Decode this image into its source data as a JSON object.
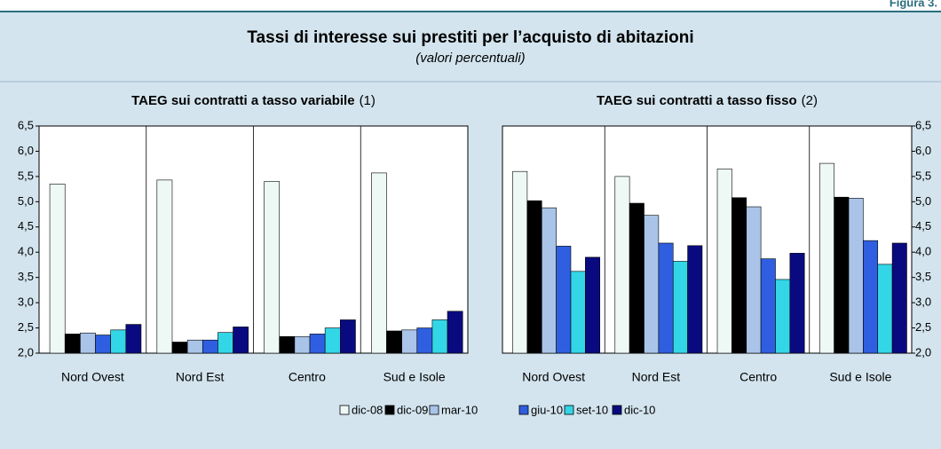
{
  "figure_label": "Figura 3.",
  "title": "Tassi di interesse sui prestiti per l’acquisto di abitazioni",
  "subtitle": "(valori percentuali)",
  "chart_data": [
    {
      "type": "bar",
      "title": "TAEG sui contratti a tasso variabile",
      "title_note": "(1)",
      "categories": [
        "Nord Ovest",
        "Nord Est",
        "Centro",
        "Sud e Isole"
      ],
      "series": [
        {
          "name": "dic-08",
          "color": "#eef9f6",
          "values": [
            5.35,
            5.43,
            5.4,
            5.57
          ]
        },
        {
          "name": "dic-09",
          "color": "#000000",
          "values": [
            2.38,
            2.22,
            2.33,
            2.44
          ]
        },
        {
          "name": "mar-10",
          "color": "#a9c4e8",
          "values": [
            2.4,
            2.26,
            2.33,
            2.46
          ]
        },
        {
          "name": "giu-10",
          "color": "#2f5fe0",
          "values": [
            2.36,
            2.26,
            2.38,
            2.5
          ]
        },
        {
          "name": "set-10",
          "color": "#33d6e6",
          "values": [
            2.46,
            2.41,
            2.5,
            2.66
          ]
        },
        {
          "name": "dic-10",
          "color": "#0a0a80",
          "values": [
            2.57,
            2.52,
            2.66,
            2.83
          ]
        }
      ],
      "ylim": [
        2.0,
        6.5
      ],
      "yticks": [
        {
          "value": 2.0,
          "label": "2,0"
        },
        {
          "value": 2.5,
          "label": "2,5"
        },
        {
          "value": 3.0,
          "label": "3,0"
        },
        {
          "value": 3.5,
          "label": "3,5"
        },
        {
          "value": 4.0,
          "label": "4,0"
        },
        {
          "value": 4.5,
          "label": "4,5"
        },
        {
          "value": 5.0,
          "label": "5,0"
        },
        {
          "value": 5.5,
          "label": "5,5"
        },
        {
          "value": 6.0,
          "label": "6,0"
        },
        {
          "value": 6.5,
          "label": "6,5"
        }
      ],
      "yaxis_side": "left"
    },
    {
      "type": "bar",
      "title": "TAEG sui contratti a tasso fisso",
      "title_note": "(2)",
      "categories": [
        "Nord Ovest",
        "Nord Est",
        "Centro",
        "Sud e Isole"
      ],
      "series": [
        {
          "name": "dic-08",
          "color": "#eef9f6",
          "values": [
            5.6,
            5.5,
            5.65,
            5.76
          ]
        },
        {
          "name": "dic-09",
          "color": "#000000",
          "values": [
            5.02,
            4.97,
            5.08,
            5.09
          ]
        },
        {
          "name": "mar-10",
          "color": "#a9c4e8",
          "values": [
            4.88,
            4.73,
            4.9,
            5.07
          ]
        },
        {
          "name": "giu-10",
          "color": "#2f5fe0",
          "values": [
            4.12,
            4.18,
            3.87,
            4.23
          ]
        },
        {
          "name": "set-10",
          "color": "#33d6e6",
          "values": [
            3.62,
            3.82,
            3.46,
            3.76
          ]
        },
        {
          "name": "dic-10",
          "color": "#0a0a80",
          "values": [
            3.9,
            4.13,
            3.98,
            4.18
          ]
        }
      ],
      "ylim": [
        2.0,
        6.5
      ],
      "yticks": [
        {
          "value": 2.0,
          "label": "2,0"
        },
        {
          "value": 2.5,
          "label": "2,5"
        },
        {
          "value": 3.0,
          "label": "3,0"
        },
        {
          "value": 3.5,
          "label": "3,5"
        },
        {
          "value": 4.0,
          "label": "4,0"
        },
        {
          "value": 4.5,
          "label": "4,5"
        },
        {
          "value": 5.0,
          "label": "5,0"
        },
        {
          "value": 5.5,
          "label": "5,5"
        },
        {
          "value": 6.0,
          "label": "6,0"
        },
        {
          "value": 6.5,
          "label": "6,5"
        }
      ],
      "yaxis_side": "right"
    }
  ]
}
